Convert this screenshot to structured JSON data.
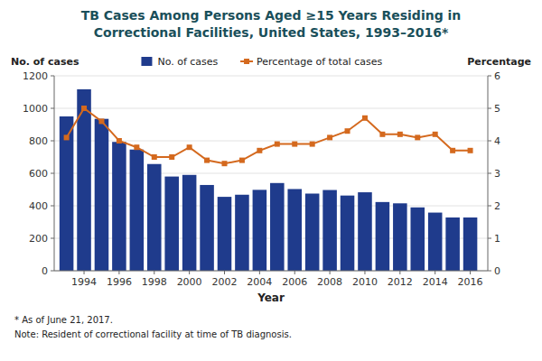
{
  "chart_data": {
    "type": "bar",
    "title": "TB Cases Among Persons Aged ≥15 Years Residing in",
    "subtitle": "Correctional Facilities, United States, 1993–2016*",
    "x": [
      1993,
      1994,
      1995,
      1996,
      1997,
      1998,
      1999,
      2000,
      2001,
      2002,
      2003,
      2004,
      2005,
      2006,
      2007,
      2008,
      2009,
      2010,
      2011,
      2012,
      2013,
      2014,
      2015,
      2016
    ],
    "series": [
      {
        "name": "No. of cases",
        "type": "bar",
        "color": "#1F3B8C",
        "values": [
          950,
          1117,
          935,
          793,
          746,
          657,
          580,
          590,
          528,
          455,
          468,
          498,
          540,
          503,
          475,
          497,
          463,
          483,
          423,
          415,
          390,
          358,
          328,
          328
        ]
      },
      {
        "name": "Percentage of total cases",
        "type": "line",
        "axis": "y2",
        "color": "#D4691E",
        "marker": "square",
        "values": [
          4.1,
          5.0,
          4.6,
          4.0,
          3.8,
          3.5,
          3.5,
          3.8,
          3.4,
          3.3,
          3.4,
          3.7,
          3.9,
          3.9,
          3.9,
          4.1,
          4.3,
          4.7,
          4.2,
          4.2,
          4.1,
          4.2,
          3.7,
          3.7
        ]
      }
    ],
    "x_label": "Year",
    "y_label": "No. of cases",
    "y2_label": "Percentage",
    "xlim": [
      1992.3,
      2017.0
    ],
    "xticks": [
      1994,
      1996,
      1998,
      2000,
      2002,
      2004,
      2006,
      2008,
      2010,
      2012,
      2014,
      2016
    ],
    "ylim": [
      0,
      1200
    ],
    "yticks": [
      0,
      200,
      400,
      600,
      800,
      1000,
      1200
    ],
    "y2lim": [
      0,
      6
    ],
    "y2ticks": [
      0,
      1,
      2,
      3,
      4,
      5,
      6
    ],
    "grid": true,
    "legend": "top",
    "annotations": [
      "* As of June 21, 2017.",
      "Note: Resident of correctional facility at time of TB diagnosis."
    ]
  }
}
